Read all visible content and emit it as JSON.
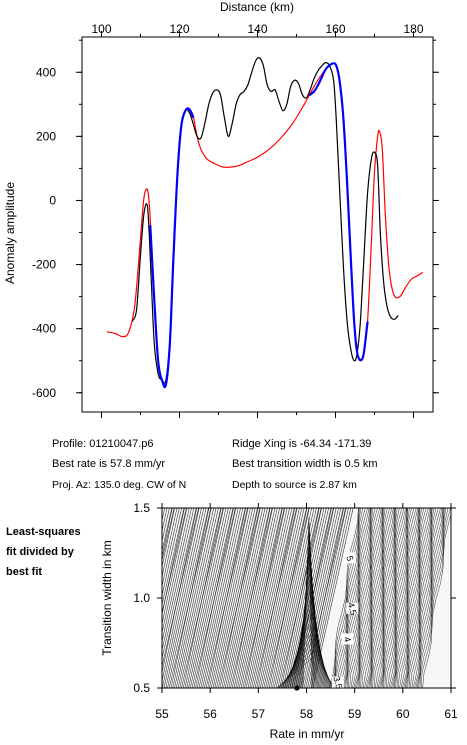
{
  "info": {
    "profile": "Profile: 01210047.p6",
    "ridge": "Ridge Xing is -64.34 -171.39",
    "rate": "Best rate is 57.8 mm/yr",
    "width": "Best transition width is 0.5 km",
    "az": "Proj. Az: 135.0 deg. CW of N",
    "depth": "Depth to source is   2.87 km"
  },
  "side_note": [
    "Least-squares",
    "fit divided by",
    "best fit"
  ],
  "colors": {
    "observed": "#000000",
    "model": "#ff0000",
    "fit_segment": "#0000ff"
  },
  "chart_data": [
    {
      "type": "line",
      "xlabel": "Distance (km)",
      "ylabel": "Anomaly amplitude",
      "xlim": [
        95,
        185
      ],
      "ylim": [
        -660,
        510
      ],
      "xticks": [
        100,
        120,
        140,
        160,
        180
      ],
      "yticks": [
        -600,
        -400,
        -200,
        0,
        200,
        400
      ],
      "series": [
        {
          "id": "model",
          "color": "#ff0000",
          "x": [
            101.5,
            103.5,
            105.5,
            107,
            108.5,
            109.8,
            110.8,
            111.5,
            112,
            112.5,
            113.5,
            114.5,
            115.5,
            116.5,
            117.5,
            118.5,
            119.5,
            120.5,
            121.5,
            122.5,
            123.5,
            124.5,
            125.5,
            127,
            129,
            131,
            133,
            135,
            137,
            140,
            143,
            146,
            149,
            152,
            154,
            156,
            157.5,
            158.5,
            159.5,
            160.2,
            161,
            162,
            163,
            164,
            164.8,
            165.5,
            166.3,
            167.2,
            168.2,
            169.2,
            170,
            170.8,
            171.3,
            172,
            172.8,
            173.8,
            175,
            176.5,
            178,
            179.5,
            181,
            182.3
          ],
          "y": [
            -410,
            -415,
            -425,
            -410,
            -330,
            -150,
            0,
            35,
            20,
            -60,
            -300,
            -500,
            -560,
            -570,
            -450,
            -150,
            100,
            240,
            280,
            285,
            265,
            200,
            160,
            130,
            115,
            105,
            104,
            108,
            118,
            135,
            160,
            195,
            240,
            300,
            345,
            385,
            410,
            420,
            428,
            420,
            375,
            260,
            50,
            -200,
            -380,
            -470,
            -495,
            -480,
            -380,
            -130,
            90,
            200,
            215,
            160,
            -50,
            -220,
            -295,
            -300,
            -270,
            -245,
            -235,
            -225
          ]
        },
        {
          "id": "observed",
          "color": "#000000",
          "x": [
            108,
            109,
            110,
            110.8,
            111.5,
            112,
            112.7,
            113.5,
            114.5,
            115.5,
            116.5,
            117.5,
            118.5,
            119.5,
            120.5,
            121.5,
            122.5,
            123.5,
            124.5,
            125.5,
            126.5,
            127.5,
            128.5,
            129.5,
            130.5,
            131.5,
            132.5,
            133.5,
            134.5,
            135.5,
            136.5,
            137.5,
            138.5,
            139.5,
            140.5,
            141.5,
            142.5,
            143.5,
            144.5,
            145.5,
            146.5,
            147.5,
            148.5,
            149.5,
            150.5,
            151.5,
            152.5,
            153.5,
            154.5,
            155.5,
            156.5,
            157.5,
            158.5,
            159.5,
            160.2,
            161,
            162,
            163,
            164,
            164.8,
            165.5,
            166.3,
            167.2,
            168.2,
            169.2,
            170,
            170.8,
            171.5,
            172.3,
            173.2,
            174.2,
            175.2,
            176
          ],
          "y": [
            -375,
            -340,
            -170,
            -50,
            -10,
            -50,
            -230,
            -440,
            -540,
            -560,
            -560,
            -440,
            -180,
            100,
            240,
            280,
            275,
            240,
            200,
            195,
            240,
            300,
            335,
            345,
            330,
            260,
            200,
            240,
            300,
            330,
            340,
            360,
            400,
            435,
            445,
            420,
            360,
            340,
            345,
            310,
            280,
            300,
            355,
            375,
            365,
            330,
            320,
            345,
            380,
            405,
            420,
            430,
            420,
            375,
            250,
            50,
            -200,
            -380,
            -470,
            -500,
            -480,
            -390,
            -200,
            20,
            130,
            150,
            110,
            -100,
            -250,
            -330,
            -365,
            -370,
            -360
          ]
        },
        {
          "id": "fit_segment_1",
          "color": "#0000ff",
          "x": [
            112.5,
            113.5,
            114.5,
            115.5,
            116.5,
            117.5,
            118.5,
            119.5,
            120.5,
            121.5,
            122.5,
            123.5
          ],
          "y": [
            -80,
            -300,
            -500,
            -560,
            -575,
            -450,
            -160,
            90,
            235,
            280,
            285,
            260
          ]
        },
        {
          "id": "fit_segment_2",
          "color": "#0000ff",
          "x": [
            153.5,
            154.5,
            155.5,
            156.5,
            157.5,
            158.5,
            159.5,
            160.2,
            161,
            162,
            163,
            164,
            164.8,
            165.5,
            166.3,
            167.2,
            168.2
          ],
          "y": [
            330,
            340,
            360,
            385,
            410,
            422,
            428,
            420,
            378,
            260,
            50,
            -200,
            -380,
            -470,
            -498,
            -480,
            -380
          ]
        }
      ]
    },
    {
      "type": "heatmap",
      "xlabel": "Rate in mm/yr",
      "ylabel": "Transition width in km",
      "xlim": [
        55,
        61
      ],
      "ylim": [
        0.5,
        1.5
      ],
      "xticks": [
        55,
        56,
        57,
        58,
        59,
        60,
        61
      ],
      "yticks": [
        0.5,
        1.0,
        1.5
      ],
      "contour_labels": [
        {
          "text": "5",
          "x": 58.9,
          "y": 1.22
        },
        {
          "text": "4.5",
          "x": 58.95,
          "y": 0.94
        },
        {
          "text": "4",
          "x": 58.85,
          "y": 0.77
        },
        {
          "text": "3.5",
          "x": 58.65,
          "y": 0.53
        }
      ],
      "best_fit": {
        "x": 57.8,
        "y": 0.5
      }
    }
  ]
}
